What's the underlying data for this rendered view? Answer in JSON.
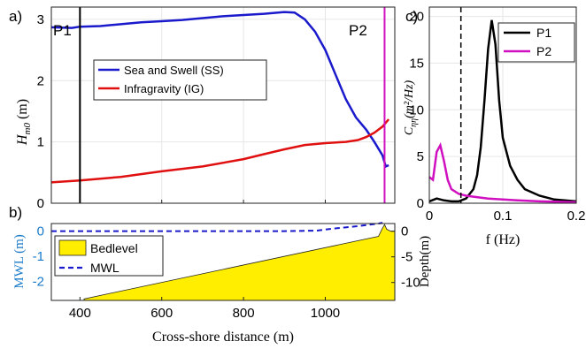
{
  "panel_a": {
    "label": "a)",
    "ylabel_main": "H",
    "ylabel_sub": "m0",
    "ylabel_unit": "(m)",
    "p1_label": "P1",
    "p2_label": "P2",
    "legend": [
      "Sea and Swell (SS)",
      "Infragravity (IG)"
    ],
    "colors": {
      "ss": "#1a1acc",
      "ig": "#e01010",
      "p1": "#000000",
      "p2": "#d010c0"
    }
  },
  "panel_b": {
    "label": "b)",
    "ylabel_left": "MWL (m)",
    "ylabel_right": "Depth(m)",
    "xlabel": "Cross-shore distance (m)",
    "legend": [
      "Bedlevel",
      "MWL"
    ],
    "colors": {
      "bed": "#ffee00",
      "mwl": "#1a1acc",
      "left_axis": "#1a7ac8"
    }
  },
  "panel_c": {
    "label": "c)",
    "ylabel": "C",
    "ylabel_sub": "ηη",
    "ylabel_unit": "(m²/Hz)",
    "xlabel": "f (Hz)",
    "legend": [
      "P1",
      "P2"
    ],
    "colors": {
      "p1": "#000000",
      "p2": "#d010c0"
    }
  },
  "chart_data": [
    {
      "type": "line",
      "panel": "a",
      "xlim": [
        330,
        1170
      ],
      "ylim": [
        0,
        3.2
      ],
      "xticks": [
        400,
        600,
        800,
        1000
      ],
      "yticks": [
        0,
        1,
        2,
        3
      ],
      "grid": true,
      "vlines": [
        {
          "name": "P1",
          "x": 400
        },
        {
          "name": "P2",
          "x": 1145
        }
      ],
      "series": [
        {
          "name": "Sea and Swell (SS)",
          "x": [
            330,
            380,
            400,
            450,
            500,
            550,
            600,
            650,
            700,
            750,
            800,
            850,
            900,
            925,
            950,
            975,
            1000,
            1025,
            1050,
            1075,
            1100,
            1120,
            1140,
            1148,
            1155
          ],
          "y": [
            2.87,
            2.86,
            2.88,
            2.89,
            2.92,
            2.95,
            2.97,
            2.99,
            3.02,
            3.05,
            3.07,
            3.09,
            3.12,
            3.11,
            3.0,
            2.8,
            2.5,
            2.1,
            1.7,
            1.4,
            1.2,
            1.0,
            0.78,
            0.6,
            0.62
          ]
        },
        {
          "name": "Infragravity (IG)",
          "x": [
            330,
            400,
            500,
            600,
            700,
            800,
            850,
            900,
            950,
            1000,
            1050,
            1080,
            1100,
            1120,
            1140,
            1155
          ],
          "y": [
            0.34,
            0.37,
            0.43,
            0.52,
            0.6,
            0.72,
            0.8,
            0.88,
            0.95,
            0.98,
            1.0,
            1.03,
            1.08,
            1.15,
            1.25,
            1.37
          ]
        }
      ]
    },
    {
      "type": "area",
      "panel": "b",
      "xlim": [
        330,
        1170
      ],
      "xticks": [
        400,
        600,
        800,
        1000
      ],
      "left_ylim": [
        -2.75,
        0.3
      ],
      "left_yticks": [
        0,
        -1,
        -2
      ],
      "right_ylim": [
        -13.5,
        1.5
      ],
      "right_yticks": [
        0,
        -5,
        -10
      ],
      "series": [
        {
          "name": "Bedlevel",
          "x": [
            410,
            1130,
            1140,
            1145,
            1150,
            1160
          ],
          "y": [
            -13.2,
            -1.0,
            0.6,
            1.3,
            0.4,
            0.0
          ]
        },
        {
          "name": "MWL",
          "x": [
            330,
            500,
            700,
            900,
            980,
            1020,
            1080,
            1130,
            1140
          ],
          "y": [
            0.0,
            0.0,
            0.0,
            0.0,
            0.02,
            0.1,
            0.2,
            0.3,
            0.33
          ]
        }
      ]
    },
    {
      "type": "line",
      "panel": "c",
      "xlim": [
        0,
        0.2
      ],
      "ylim": [
        0,
        21
      ],
      "xticks": [
        0,
        0.1,
        0.2
      ],
      "yticks": [
        0,
        5,
        10,
        15,
        20
      ],
      "grid": true,
      "vlines": [
        {
          "x": 0.043,
          "style": "dashed"
        }
      ],
      "series": [
        {
          "name": "P1",
          "x": [
            0,
            0.01,
            0.02,
            0.03,
            0.04,
            0.05,
            0.06,
            0.065,
            0.07,
            0.075,
            0.08,
            0.085,
            0.09,
            0.095,
            0.1,
            0.11,
            0.12,
            0.13,
            0.15,
            0.17,
            0.2
          ],
          "y": [
            0.2,
            0.5,
            0.3,
            0.2,
            0.2,
            0.5,
            1.5,
            3.0,
            6.0,
            11.0,
            16.5,
            19.6,
            17.0,
            11.0,
            7.0,
            4.0,
            2.5,
            1.5,
            0.8,
            0.4,
            0.2
          ]
        },
        {
          "name": "P2",
          "x": [
            0,
            0.005,
            0.01,
            0.015,
            0.02,
            0.025,
            0.03,
            0.04,
            0.05,
            0.06,
            0.08,
            0.1,
            0.12,
            0.15,
            0.2
          ],
          "y": [
            2.8,
            2.5,
            5.5,
            6.2,
            4.5,
            2.5,
            1.5,
            1.0,
            0.8,
            0.7,
            0.5,
            0.4,
            0.3,
            0.2,
            0.1
          ]
        }
      ]
    }
  ]
}
